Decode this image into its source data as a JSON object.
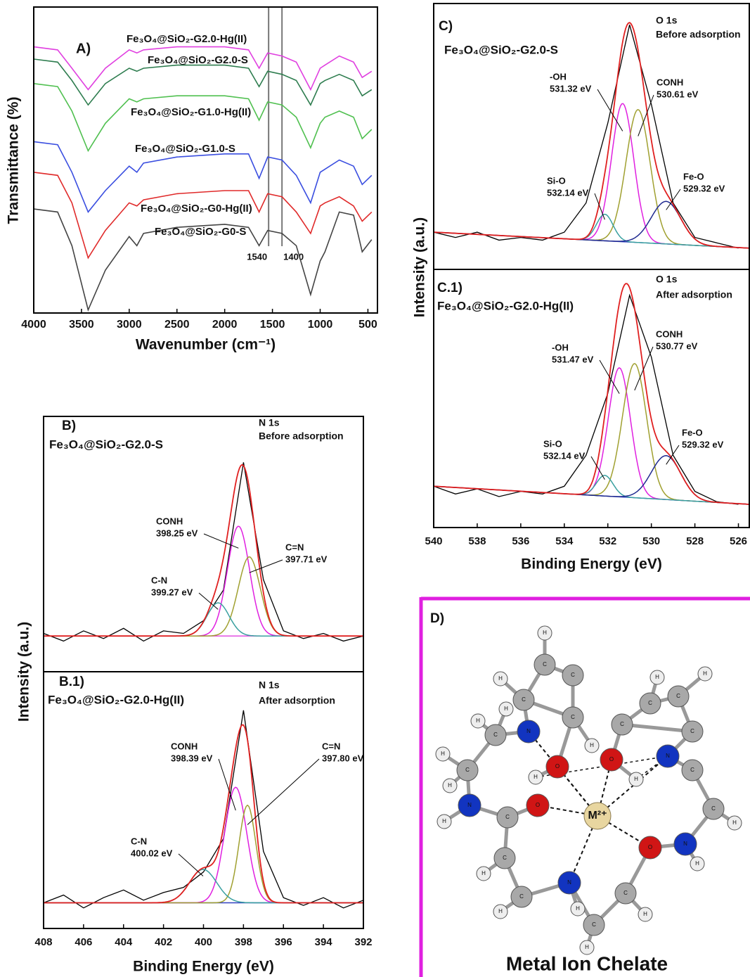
{
  "chart_data": [
    {
      "type": "line",
      "title": "A)",
      "xlabel": "Wavenumber (cm⁻¹)",
      "ylabel": "Transmittance (%)",
      "xlim": [
        4000,
        400
      ],
      "xticks": [
        4000,
        3500,
        3000,
        2500,
        2000,
        1500,
        1000,
        500
      ],
      "ylim": [
        0,
        100
      ],
      "vlines": [
        1540,
        1400
      ],
      "vline_color": "#777777",
      "x": [
        4000,
        3750,
        3600,
        3430,
        3250,
        3000,
        2920,
        2850,
        2500,
        2000,
        1750,
        1640,
        1550,
        1400,
        1250,
        1100,
        1000,
        950,
        800,
        650,
        560,
        460
      ],
      "series": [
        {
          "name": "Fe₃O₄@SiO₂-G2.0-Hg(II)",
          "color": "#e040e0",
          "values": [
            87,
            86,
            80,
            73,
            80,
            86,
            85,
            86,
            87,
            87,
            86,
            80,
            85,
            84,
            82,
            73,
            80,
            81,
            84,
            82,
            77,
            79
          ]
        },
        {
          "name": "Fe₃O₄@SiO₂-G2.0-S",
          "color": "#2e7d4f",
          "values": [
            83,
            82,
            76,
            68,
            75,
            80,
            79,
            80,
            81,
            81,
            80,
            74,
            79,
            78,
            76,
            68,
            75,
            76,
            78,
            76,
            71,
            73
          ]
        },
        {
          "name": "Fe₃O₄@SiO₂-G1.0-Hg(II)",
          "color": "#50c050",
          "values": [
            75,
            74,
            66,
            53,
            62,
            70,
            69,
            70,
            71,
            71,
            70,
            63,
            69,
            68,
            64,
            54,
            62,
            64,
            66,
            64,
            57,
            60
          ]
        },
        {
          "name": "Fe₃O₄@SiO₂-G1.0-S",
          "color": "#3a4ee0",
          "values": [
            56,
            55,
            46,
            33,
            40,
            48,
            46,
            49,
            51,
            52,
            52,
            44,
            51,
            50,
            45,
            36,
            46,
            47,
            50,
            48,
            42,
            45
          ]
        },
        {
          "name": "Fe₃O₄@SiO₂-G0-Hg(II)",
          "color": "#e02a2a",
          "values": [
            46,
            45,
            36,
            18,
            27,
            36,
            35,
            37,
            39,
            40,
            40,
            33,
            39,
            38,
            33,
            26,
            35,
            36,
            38,
            35,
            30,
            33
          ]
        },
        {
          "name": "Fe₃O₄@SiO₂-G0-S",
          "color": "#444444",
          "values": [
            34,
            33,
            22,
            1,
            14,
            25,
            22,
            26,
            28,
            29,
            28,
            22,
            27,
            26,
            22,
            6,
            17,
            20,
            33,
            32,
            20,
            24
          ]
        }
      ]
    },
    {
      "type": "xps",
      "xlabel": "Binding Energy (eV)",
      "ylabel": "Intensity (a.u.)",
      "xlim": [
        408,
        392
      ],
      "xticks": [
        408,
        406,
        404,
        402,
        400,
        398,
        396,
        394,
        392
      ],
      "ylim": [
        0,
        100
      ],
      "panels": [
        {
          "title": "B)",
          "sample": "Fe₃O₄@SiO₂-G2.0-S",
          "sample_color": "#1f6e3a",
          "core": "N 1s",
          "state": "Before adsorption",
          "baseline": [
            14,
            14
          ],
          "baseline_color": "#e040e0",
          "fit_color": "#e02020",
          "raw": {
            "color": "#000000",
            "x": [
              408,
              407,
              406,
              405,
              404,
              403,
              402,
              401,
              400,
              399,
              398,
              397,
              396,
              395,
              394,
              393,
              392
            ],
            "values": [
              15,
              12,
              16,
              13,
              17,
              12,
              16,
              15,
              20,
              32,
              82,
              36,
              16,
              13,
              15,
              12,
              14
            ]
          },
          "peaks": [
            {
              "name": "CONH",
              "center": 398.25,
              "center_label": "398.25 eV",
              "height": 43,
              "fwhm": 1.3,
              "color": "#e020e0"
            },
            {
              "name": "C=N",
              "center": 397.71,
              "center_label": "397.71 eV",
              "height": 31,
              "fwhm": 1.3,
              "color": "#a0a030"
            },
            {
              "name": "C-N",
              "center": 399.27,
              "center_label": "399.27 eV",
              "height": 13,
              "fwhm": 1.3,
              "color": "#3aa0a0"
            }
          ]
        },
        {
          "title": "B.1)",
          "sample": "Fe₃O₄@SiO₂-G2.0-Hg(II)",
          "sample_color": "#e020e0",
          "core": "N 1s",
          "state": "After adsorption",
          "baseline": [
            10,
            10
          ],
          "baseline_color": "#3040c0",
          "fit_color": "#e02020",
          "raw": {
            "color": "#000000",
            "x": [
              408,
              407,
              406,
              405,
              404,
              403,
              402,
              401,
              400,
              399,
              398,
              397,
              396,
              395,
              394,
              393,
              392
            ],
            "values": [
              10,
              13,
              8,
              12,
              15,
              11,
              14,
              16,
              22,
              35,
              85,
              30,
              12,
              9,
              12,
              8,
              11
            ]
          },
          "peaks": [
            {
              "name": "CONH",
              "center": 398.39,
              "center_label": "398.39 eV",
              "height": 45,
              "fwhm": 1.3,
              "color": "#e020e0"
            },
            {
              "name": "C=N",
              "center": 397.8,
              "center_label": "397.80 eV",
              "height": 38,
              "fwhm": 1.0,
              "color": "#a0a030"
            },
            {
              "name": "C-N",
              "center": 400.02,
              "center_label": "400.02 eV",
              "height": 13,
              "fwhm": 1.6,
              "color": "#3aa0a0"
            }
          ]
        }
      ]
    },
    {
      "type": "xps",
      "xlabel": "Binding Energy (eV)",
      "ylabel": "Intensity (a.u.)",
      "xlim": [
        540,
        525.5
      ],
      "xticks": [
        540,
        538,
        536,
        534,
        532,
        530,
        528,
        526
      ],
      "ylim": [
        0,
        100
      ],
      "panels": [
        {
          "title": "C)",
          "sample": "Fe₃O₄@SiO₂-G2.0-S",
          "sample_color": "#1f6e3a",
          "core": "O 1s",
          "state": "Before adsorption",
          "baseline": [
            14,
            8
          ],
          "baseline_color": "#3040c0",
          "fit_color": "#e02020",
          "raw": {
            "color": "#000000",
            "x": [
              540,
              539,
              538,
              537,
              536,
              535,
              534,
              533,
              532,
              531,
              530,
              529,
              528,
              527,
              526
            ],
            "values": [
              14,
              12,
              14,
              11,
              12,
              11,
              14,
              25,
              55,
              92,
              62,
              25,
              12,
              10,
              8
            ]
          },
          "peaks": [
            {
              "name": "-OH",
              "center": 531.32,
              "center_label": "531.32 eV",
              "height": 52,
              "fwhm": 1.2,
              "color": "#e020e0"
            },
            {
              "name": "CONH",
              "center": 530.61,
              "center_label": "530.61 eV",
              "height": 50,
              "fwhm": 1.3,
              "color": "#a0a030"
            },
            {
              "name": "Si-O",
              "center": 532.14,
              "center_label": "532.14 eV",
              "height": 10,
              "fwhm": 0.9,
              "color": "#3aa0a0"
            },
            {
              "name": "Fe-O",
              "center": 529.32,
              "center_label": "529.32 eV",
              "height": 16,
              "fwhm": 1.6,
              "color": "#202a90"
            }
          ]
        },
        {
          "title": "C.1)",
          "sample": "Fe₃O₄@SiO₂-G2.0-Hg(II)",
          "sample_color": "#e020e0",
          "core": "O 1s",
          "state": "After adsorption",
          "baseline": [
            16,
            9
          ],
          "baseline_color": "#3040c0",
          "fit_color": "#e02020",
          "raw": {
            "color": "#000000",
            "x": [
              540,
              539,
              538,
              537,
              536,
              535,
              534,
              533,
              532,
              531,
              530,
              529,
              528,
              527,
              526
            ],
            "values": [
              16,
              13,
              15,
              12,
              14,
              13,
              16,
              28,
              52,
              90,
              66,
              28,
              14,
              10,
              9
            ]
          },
          "peaks": [
            {
              "name": "-OH",
              "center": 531.47,
              "center_label": "531.47 eV",
              "height": 50,
              "fwhm": 1.2,
              "color": "#e020e0"
            },
            {
              "name": "CONH",
              "center": 530.77,
              "center_label": "530.77 eV",
              "height": 52,
              "fwhm": 1.3,
              "color": "#a0a030"
            },
            {
              "name": "Si-O",
              "center": 532.14,
              "center_label": "532.14 eV",
              "height": 8,
              "fwhm": 0.9,
              "color": "#3aa0a0"
            },
            {
              "name": "Fe-O",
              "center": 529.32,
              "center_label": "529.32 eV",
              "height": 17,
              "fwhm": 1.6,
              "color": "#202a90"
            }
          ]
        }
      ]
    }
  ],
  "molecule": {
    "title": "D)",
    "caption": "Metal Ion Chelate",
    "metal": "M²⁺",
    "atoms": [
      "N",
      "O",
      "H",
      "C",
      "H",
      "H",
      "C",
      "H",
      "H",
      "N",
      "H",
      "C",
      "O",
      "C",
      "H",
      "C",
      "H",
      "N",
      "H",
      "C",
      "H",
      "C",
      "H",
      "O",
      "N",
      "H",
      "C",
      "H",
      "C",
      "N",
      "O",
      "H",
      "C",
      "C",
      "C",
      "C",
      "H",
      "H",
      "C",
      "C",
      "C",
      "C",
      "H",
      "H",
      "H"
    ]
  }
}
